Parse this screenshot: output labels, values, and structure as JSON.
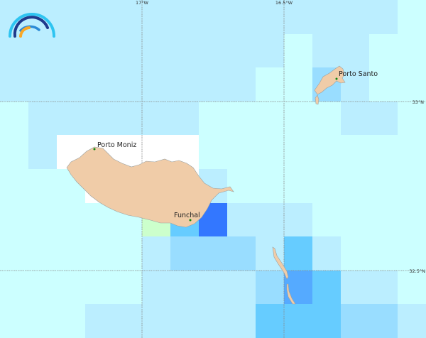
{
  "map": {
    "legend_colors": {
      "A": "#ccffff",
      "B": "#bbeeff",
      "C": "#99ddff",
      "D": "#66ccff",
      "E": "#55aaff",
      "F": "#3377ff",
      "G": "#ccffcc",
      "W": "#ffffff"
    },
    "grid_cells": [
      "BBBBBBBBBBBBBBA",
      "BBBBBBBBBBABBAA",
      "BBBBBBBBBAACBAA",
      "ABBBBBBAAAAABBA",
      "ABWWWWWAAAAAAAA",
      "AAAWWWWBAAAAAAA",
      "AAAAAGDFBBBAAAA",
      "AAAAABCCCBDBAAA",
      "AAAAABBBBCEDBBA",
      "AAABBBBBBDDDCCB"
    ],
    "land_color": "#f0cca8",
    "land_stroke": "#9aa0a0",
    "gridline_color": "#888888",
    "graticule": {
      "lon_labels": [
        "17°W",
        "16.5°W"
      ],
      "lat_labels": [
        "33°N",
        "32.5°N"
      ]
    },
    "places": [
      {
        "name": "Porto Moniz"
      },
      {
        "name": "Funchal"
      },
      {
        "name": "Porto Santo"
      }
    ],
    "place_marker_color": "#118811",
    "logo": {
      "icon": "rainbow-arcs-logo",
      "colors": [
        "#2ec4f1",
        "#1f3a8c",
        "#2b8ad6",
        "#f9a825"
      ]
    }
  }
}
